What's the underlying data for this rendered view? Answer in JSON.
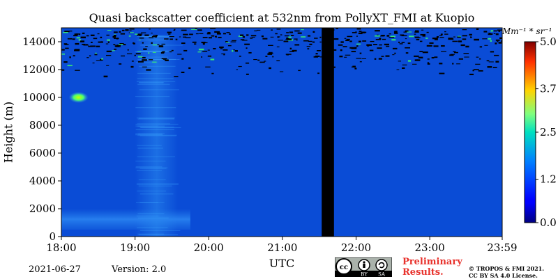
{
  "chart_data": {
    "type": "heatmap",
    "title": "Quasi backscatter coefficient at 532nm from PollyXT_FMI at Kuopio",
    "xlabel": "UTC",
    "ylabel": "Height (m)",
    "x_ticks": [
      "18:00",
      "19:00",
      "20:00",
      "21:00",
      "22:00",
      "23:00",
      "23:59"
    ],
    "y_ticks": [
      "0",
      "2000",
      "4000",
      "6000",
      "8000",
      "10000",
      "12000",
      "14000"
    ],
    "xlim": [
      "18:00",
      "23:59"
    ],
    "ylim": [
      0,
      15000
    ],
    "colorbar": {
      "label": "Mm⁻¹ * sr⁻¹",
      "ticks": [
        "0.0",
        "1.2",
        "2.5",
        "3.7",
        "5.0"
      ],
      "range": [
        0,
        5.0
      ],
      "colormap": "jet"
    },
    "background_value": 0.4,
    "features": [
      {
        "name": "near-surface aerosol layer",
        "time_start": "18:00",
        "time_end": "19:45",
        "height_bottom": 500,
        "height_top": 2000,
        "value": 1.0
      },
      {
        "name": "aerosol plume",
        "time_start": "19:00",
        "time_end": "19:35",
        "height_bottom": 0,
        "height_top": 14500,
        "value": 0.9
      },
      {
        "name": "cloud",
        "time_start": "18:10",
        "time_end": "18:18",
        "height_bottom": 9800,
        "height_top": 10200,
        "value": 3.0
      },
      {
        "name": "no data",
        "time_start": "21:32",
        "time_end": "21:42",
        "height_bottom": 0,
        "height_top": 15000
      },
      {
        "name": "noisy signal (upper)",
        "time_start": "18:00",
        "time_end": "23:59",
        "height_bottom": 11500,
        "height_top": 15000
      }
    ]
  },
  "footer": {
    "date": "2021-06-27",
    "version": "Version: 2.0",
    "preliminary_line1": "Preliminary",
    "preliminary_line2": "Results.",
    "copyright_line1": "© TROPOS & FMI 2021.",
    "copyright_line2": "CC BY SA 4.0 License.",
    "license_badge": {
      "cc": "cc",
      "by": "BY",
      "sa": "SA"
    }
  },
  "colors": {
    "background_blue": "#0a4cd6",
    "nodata": "#000000",
    "prelim_red": "#e8312b"
  }
}
